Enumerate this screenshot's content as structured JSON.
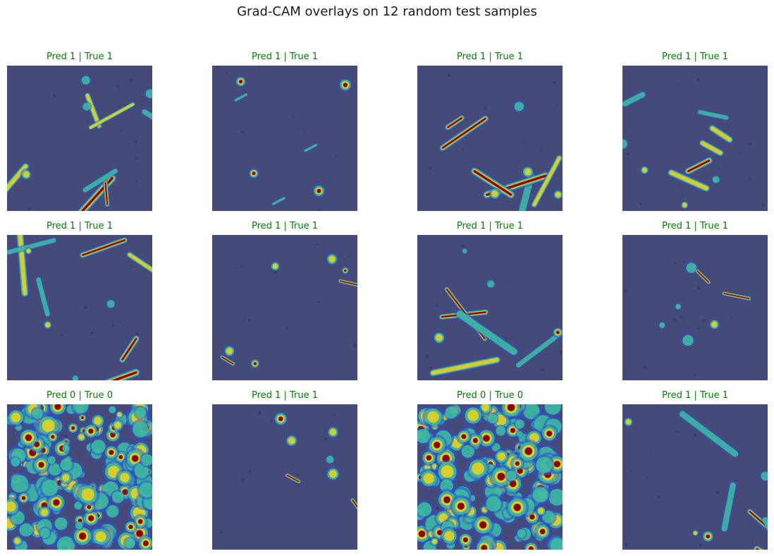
{
  "figure": {
    "title": "Grad-CAM overlays on 12 random test samples"
  },
  "panels": [
    {
      "caption": "Pred 1 | True 1",
      "kind": "fibers"
    },
    {
      "caption": "Pred 1 | True 1",
      "kind": "blobs"
    },
    {
      "caption": "Pred 1 | True 1",
      "kind": "fibers"
    },
    {
      "caption": "Pred 1 | True 1",
      "kind": "fibers"
    },
    {
      "caption": "Pred 1 | True 1",
      "kind": "fibers"
    },
    {
      "caption": "Pred 1 | True 1",
      "kind": "sparse"
    },
    {
      "caption": "Pred 1 | True 1",
      "kind": "fibers"
    },
    {
      "caption": "Pred 1 | True 1",
      "kind": "sparse"
    },
    {
      "caption": "Pred 0 | True 0",
      "kind": "noise"
    },
    {
      "caption": "Pred 1 | True 1",
      "kind": "sparse"
    },
    {
      "caption": "Pred 0 | True 0",
      "kind": "noise"
    },
    {
      "caption": "Pred 1 | True 1",
      "kind": "fibers"
    }
  ],
  "colors": {
    "caption": "#008000",
    "background_cam": "#454a78",
    "hot": "#8b0000",
    "warm": "#e8d020",
    "mid": "#3cc0a0",
    "cool": "#3050d0"
  }
}
